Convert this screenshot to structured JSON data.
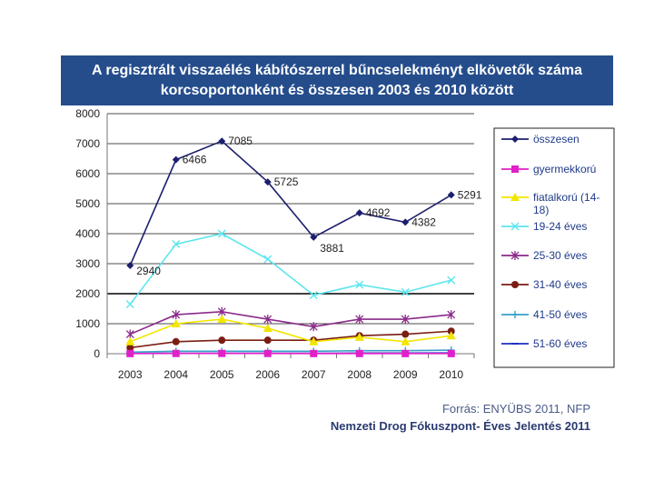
{
  "title": {
    "line1": "A regisztrált visszaélés kábítószerrel bűncselekményt elkövetők száma",
    "line2": "korcsoportonként és összesen 2003 és 2010 között"
  },
  "source": {
    "line1": "Forrás: ENYÜBS 2011, NFP",
    "line2": "Nemzeti Drog Fókuszpont- Éves Jelentés 2011"
  },
  "chart_data": {
    "type": "line",
    "title": "A regisztrált visszaélés kábítószerrel bűncselekményt elkövetők száma korcsoportonként és összesen 2003 és 2010 között",
    "xlabel": "",
    "ylabel": "",
    "ylim": [
      0,
      8000
    ],
    "yticks": [
      0,
      1000,
      2000,
      3000,
      4000,
      5000,
      6000,
      7000,
      8000
    ],
    "x": [
      "2003",
      "2004",
      "2005",
      "2006",
      "2007",
      "2008",
      "2009",
      "2010"
    ],
    "legend_position": "right",
    "series": [
      {
        "name": "összesen",
        "color": "#1c1f6e",
        "marker": "diamond",
        "values": [
          2940,
          6466,
          7085,
          5725,
          3881,
          4692,
          4382,
          5291
        ],
        "labels": [
          "2940",
          "6466",
          "7085",
          "5725",
          "3881",
          "4692",
          "4382",
          "5291"
        ]
      },
      {
        "name": "gyermekkorú",
        "color": "#e020c8",
        "marker": "square",
        "values": [
          5,
          8,
          10,
          8,
          6,
          6,
          5,
          5
        ]
      },
      {
        "name": "fiatalkorú (14-18)",
        "color": "#f2e600",
        "marker": "triangle",
        "values": [
          400,
          1000,
          1150,
          850,
          400,
          550,
          400,
          600
        ]
      },
      {
        "name": "19-24 éves",
        "color": "#5ce6ee",
        "marker": "x",
        "values": [
          1650,
          3650,
          4000,
          3150,
          1950,
          2300,
          2050,
          2450
        ]
      },
      {
        "name": "25-30 éves",
        "color": "#8a2a8a",
        "marker": "star",
        "values": [
          650,
          1300,
          1400,
          1150,
          900,
          1150,
          1150,
          1300
        ]
      },
      {
        "name": "31-40 éves",
        "color": "#7a1d12",
        "marker": "circle",
        "values": [
          200,
          400,
          450,
          450,
          450,
          600,
          650,
          750
        ]
      },
      {
        "name": "41-50 éves",
        "color": "#3aa0c8",
        "marker": "plus",
        "values": [
          50,
          80,
          80,
          80,
          80,
          100,
          100,
          120
        ]
      },
      {
        "name": "51-60 éves",
        "color": "#2030c0",
        "marker": "dash",
        "values": [
          10,
          15,
          15,
          15,
          15,
          20,
          20,
          25
        ]
      }
    ]
  }
}
